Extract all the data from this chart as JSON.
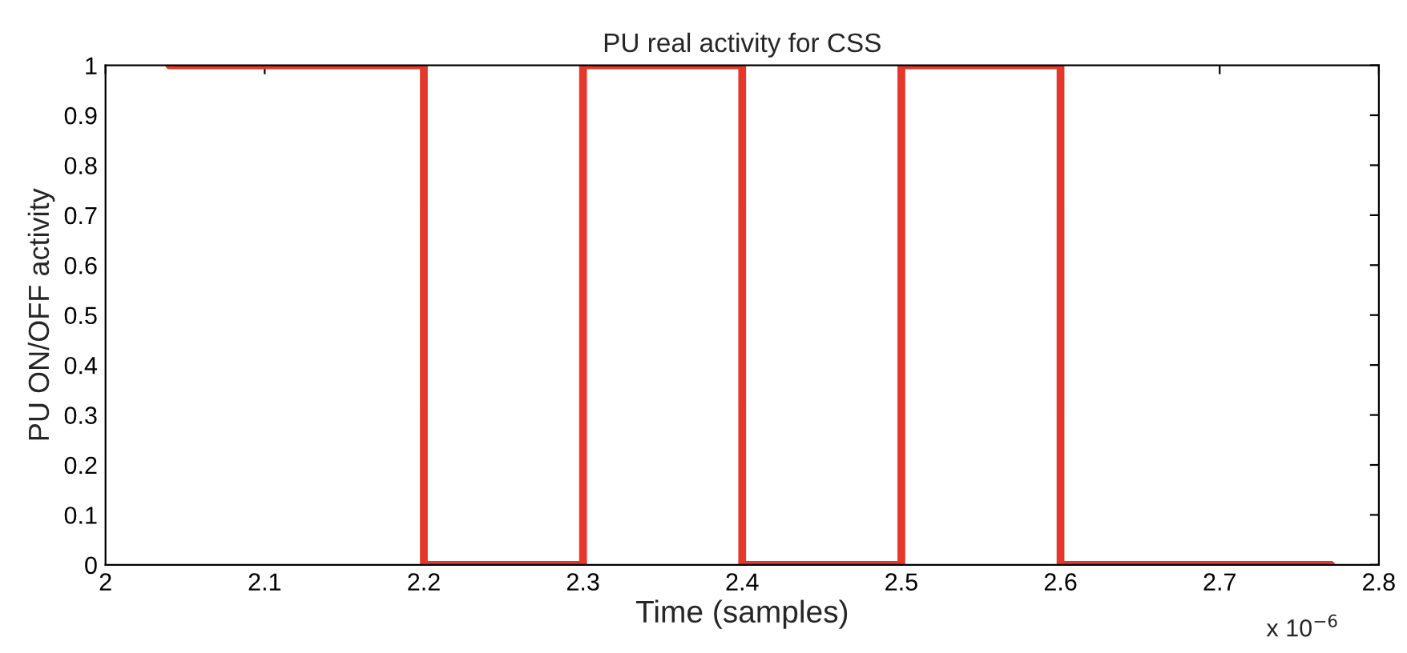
{
  "chart_data": {
    "type": "step",
    "title": "PU real activity for CSS",
    "xlabel": "Time (samples)",
    "ylabel": "PU ON/OFF activity",
    "annotations": [
      "x 10$^{−6}$"
    ],
    "x": [
      2.04,
      2.2,
      2.3,
      2.4,
      2.5,
      2.6,
      2.77
    ],
    "series": [
      {
        "color": "#e5372b",
        "values": [
          1,
          0,
          1,
          0,
          1,
          0,
          0
        ]
      }
    ],
    "xlim": [
      2,
      2.8
    ],
    "xticks": [
      2,
      2.1,
      2.2,
      2.3,
      2.4,
      2.5,
      2.6,
      2.7,
      2.8
    ],
    "ylim": [
      0,
      1
    ],
    "yticks": [
      0,
      0.1,
      0.2,
      0.3,
      0.4,
      0.5,
      0.6,
      0.7,
      0.8,
      0.9,
      1
    ],
    "grid": false,
    "legend": false,
    "marker": "none",
    "line_style": "solid"
  }
}
